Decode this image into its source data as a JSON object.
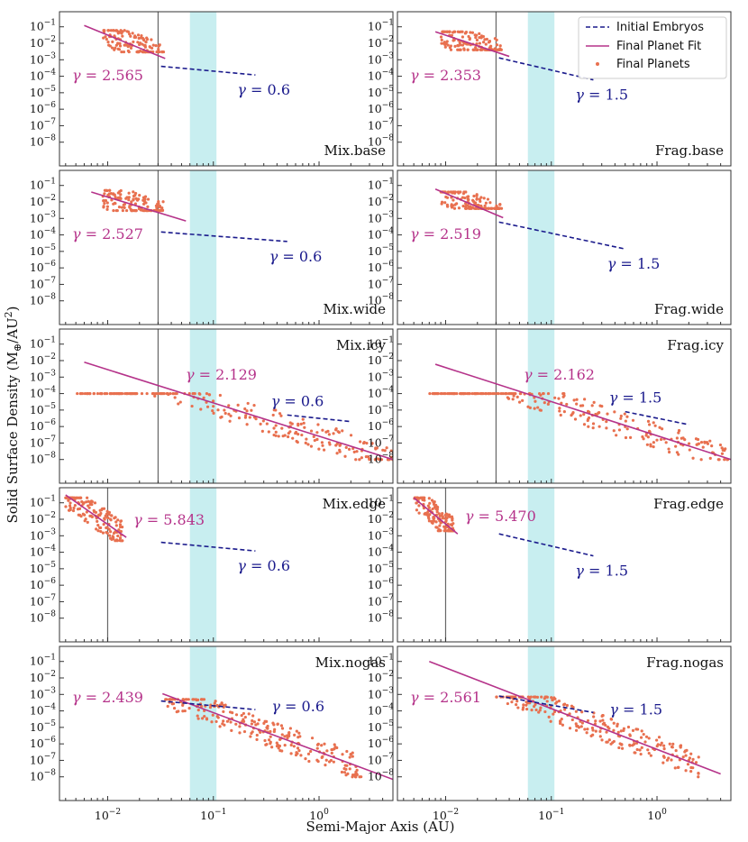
{
  "figure": {
    "xlabel": "Semi-Major Axis (AU)",
    "ylabel_main": "Solid Surface Density (M",
    "ylabel_sub": "⊕",
    "ylabel_unit": "/AU",
    "ylabel_sup": "2",
    "ylabel_close": ")",
    "gamma_symbol": "γ",
    "gamma_eq": " = ",
    "colors": {
      "embryos": "#1a1a8c",
      "fit": "#b5338a",
      "points": "#e8704f",
      "band": "#c8eef0",
      "vline": "#666666"
    }
  },
  "chart_data": {
    "type": "scatter",
    "xscale": "log",
    "yscale": "log",
    "xlim": [
      0.0035,
      5
    ],
    "ylim": [
      1e-09,
      0.3
    ],
    "xticks": [
      {
        "value": 0.01,
        "base": "10",
        "exp": "−2"
      },
      {
        "value": 0.1,
        "base": "10",
        "exp": "−1"
      },
      {
        "value": 1,
        "base": "10",
        "exp": "0"
      }
    ],
    "yticks": [
      {
        "value": 0.1,
        "base": "10",
        "exp": "−1"
      },
      {
        "value": 0.01,
        "base": "10",
        "exp": "−2"
      },
      {
        "value": 0.001,
        "base": "10",
        "exp": "−3"
      },
      {
        "value": 0.0001,
        "base": "10",
        "exp": "−4"
      },
      {
        "value": 1e-05,
        "base": "10",
        "exp": "−5"
      },
      {
        "value": 1e-06,
        "base": "10",
        "exp": "−6"
      },
      {
        "value": 1e-07,
        "base": "10",
        "exp": "−7"
      },
      {
        "value": 1e-08,
        "base": "10",
        "exp": "−8"
      }
    ],
    "shaded_band": [
      0.06,
      0.107
    ],
    "legend": {
      "location": "upper-right of top-right panel",
      "entries": [
        "Initial Embryos",
        "Final Planet Fit",
        "Final Planets"
      ]
    },
    "panels": [
      {
        "label": "Mix.base",
        "vline": 0.03,
        "fit": {
          "gamma": "2.565",
          "x": [
            0.006,
            0.035
          ],
          "y": [
            0.12,
            0.0012
          ]
        },
        "embryos": {
          "gamma": "0.6",
          "x": [
            0.032,
            0.25
          ],
          "y": [
            0.0004,
            0.00012
          ]
        },
        "cluster": {
          "x": [
            0.009,
            0.034
          ],
          "y": [
            0.003,
            0.06
          ]
        },
        "fit_label_pos": "left",
        "emb_label_pos": "mid"
      },
      {
        "label": "Frag.base",
        "vline": 0.03,
        "fit": {
          "gamma": "2.353",
          "x": [
            0.008,
            0.04
          ],
          "y": [
            0.05,
            0.0016
          ]
        },
        "embryos": {
          "gamma": "1.5",
          "x": [
            0.032,
            0.25
          ],
          "y": [
            0.0013,
            6e-05
          ]
        },
        "cluster": {
          "x": [
            0.009,
            0.034
          ],
          "y": [
            0.004,
            0.05
          ]
        },
        "fit_label_pos": "left",
        "emb_label_pos": "mid"
      },
      {
        "label": "Mix.wide",
        "vline": 0.03,
        "fit": {
          "gamma": "2.527",
          "x": [
            0.007,
            0.055
          ],
          "y": [
            0.04,
            0.0007
          ]
        },
        "embryos": {
          "gamma": "0.6",
          "x": [
            0.032,
            0.5
          ],
          "y": [
            0.00015,
            4e-05
          ]
        },
        "cluster": {
          "x": [
            0.009,
            0.034
          ],
          "y": [
            0.003,
            0.05
          ]
        },
        "fit_label_pos": "left",
        "emb_label_pos": "mid"
      },
      {
        "label": "Frag.wide",
        "vline": 0.03,
        "fit": {
          "gamma": "2.519",
          "x": [
            0.008,
            0.035
          ],
          "y": [
            0.06,
            0.0011
          ]
        },
        "embryos": {
          "gamma": "1.5",
          "x": [
            0.032,
            0.5
          ],
          "y": [
            0.0006,
            1.4e-05
          ]
        },
        "cluster": {
          "x": [
            0.009,
            0.034
          ],
          "y": [
            0.004,
            0.04
          ]
        },
        "fit_label_pos": "left",
        "emb_label_pos": "mid"
      },
      {
        "label": "Mix.icy",
        "vline": 0.03,
        "fit": {
          "gamma": "2.129",
          "x": [
            0.006,
            5
          ],
          "y": [
            0.008,
            1e-08
          ]
        },
        "embryos": {
          "gamma": "0.6",
          "x": [
            0.5,
            2
          ],
          "y": [
            5e-06,
            2e-06
          ]
        },
        "cluster": {
          "x": [
            0.005,
            5
          ],
          "y": [
            1e-08,
            0.0001
          ]
        },
        "fit_label_pos": "upper",
        "emb_label_pos": "upper"
      },
      {
        "label": "Frag.icy",
        "vline": 0.03,
        "fit": {
          "gamma": "2.162",
          "x": [
            0.008,
            5
          ],
          "y": [
            0.006,
            1e-08
          ]
        },
        "embryos": {
          "gamma": "1.5",
          "x": [
            0.5,
            2
          ],
          "y": [
            8e-06,
            1.3e-06
          ]
        },
        "cluster": {
          "x": [
            0.007,
            5
          ],
          "y": [
            1e-08,
            0.0001
          ]
        },
        "fit_label_pos": "upper",
        "emb_label_pos": "upper"
      },
      {
        "label": "Mix.edge",
        "vline": 0.01,
        "fit": {
          "gamma": "5.843",
          "x": [
            0.004,
            0.015
          ],
          "y": [
            0.3,
            0.0008
          ]
        },
        "embryos": {
          "gamma": "0.6",
          "x": [
            0.032,
            0.25
          ],
          "y": [
            0.0004,
            0.00012
          ]
        },
        "cluster": {
          "x": [
            0.004,
            0.014
          ],
          "y": [
            0.0005,
            0.2
          ]
        },
        "fit_label_pos": "right",
        "emb_label_pos": "mid"
      },
      {
        "label": "Frag.edge",
        "vline": 0.01,
        "fit": {
          "gamma": "5.470",
          "x": [
            0.005,
            0.013
          ],
          "y": [
            0.2,
            0.0013
          ]
        },
        "embryos": {
          "gamma": "1.5",
          "x": [
            0.032,
            0.25
          ],
          "y": [
            0.0013,
            6e-05
          ]
        },
        "cluster": {
          "x": [
            0.005,
            0.012
          ],
          "y": [
            0.002,
            0.2
          ]
        },
        "fit_label_pos": "right",
        "emb_label_pos": "mid"
      },
      {
        "label": "Mix.nogas",
        "vline": null,
        "fit": {
          "gamma": "2.439",
          "x": [
            0.033,
            5
          ],
          "y": [
            0.0011,
            7e-09
          ]
        },
        "embryos": {
          "gamma": "0.6",
          "x": [
            0.032,
            0.25
          ],
          "y": [
            0.0004,
            0.00012
          ]
        },
        "cluster": {
          "x": [
            0.035,
            2.5
          ],
          "y": [
            1e-08,
            0.0005
          ]
        },
        "fit_label_pos": "left",
        "emb_label_pos": "right"
      },
      {
        "label": "Frag.nogas",
        "vline": null,
        "fit": {
          "gamma": "2.561",
          "x": [
            0.007,
            4
          ],
          "y": [
            0.1,
            1.5e-08
          ]
        },
        "embryos": {
          "gamma": "1.5",
          "x": [
            0.032,
            0.25
          ],
          "y": [
            0.0008,
            8e-05
          ]
        },
        "cluster": {
          "x": [
            0.03,
            2.5
          ],
          "y": [
            1e-08,
            0.0007
          ]
        },
        "fit_label_pos": "left",
        "emb_label_pos": "right"
      }
    ]
  }
}
